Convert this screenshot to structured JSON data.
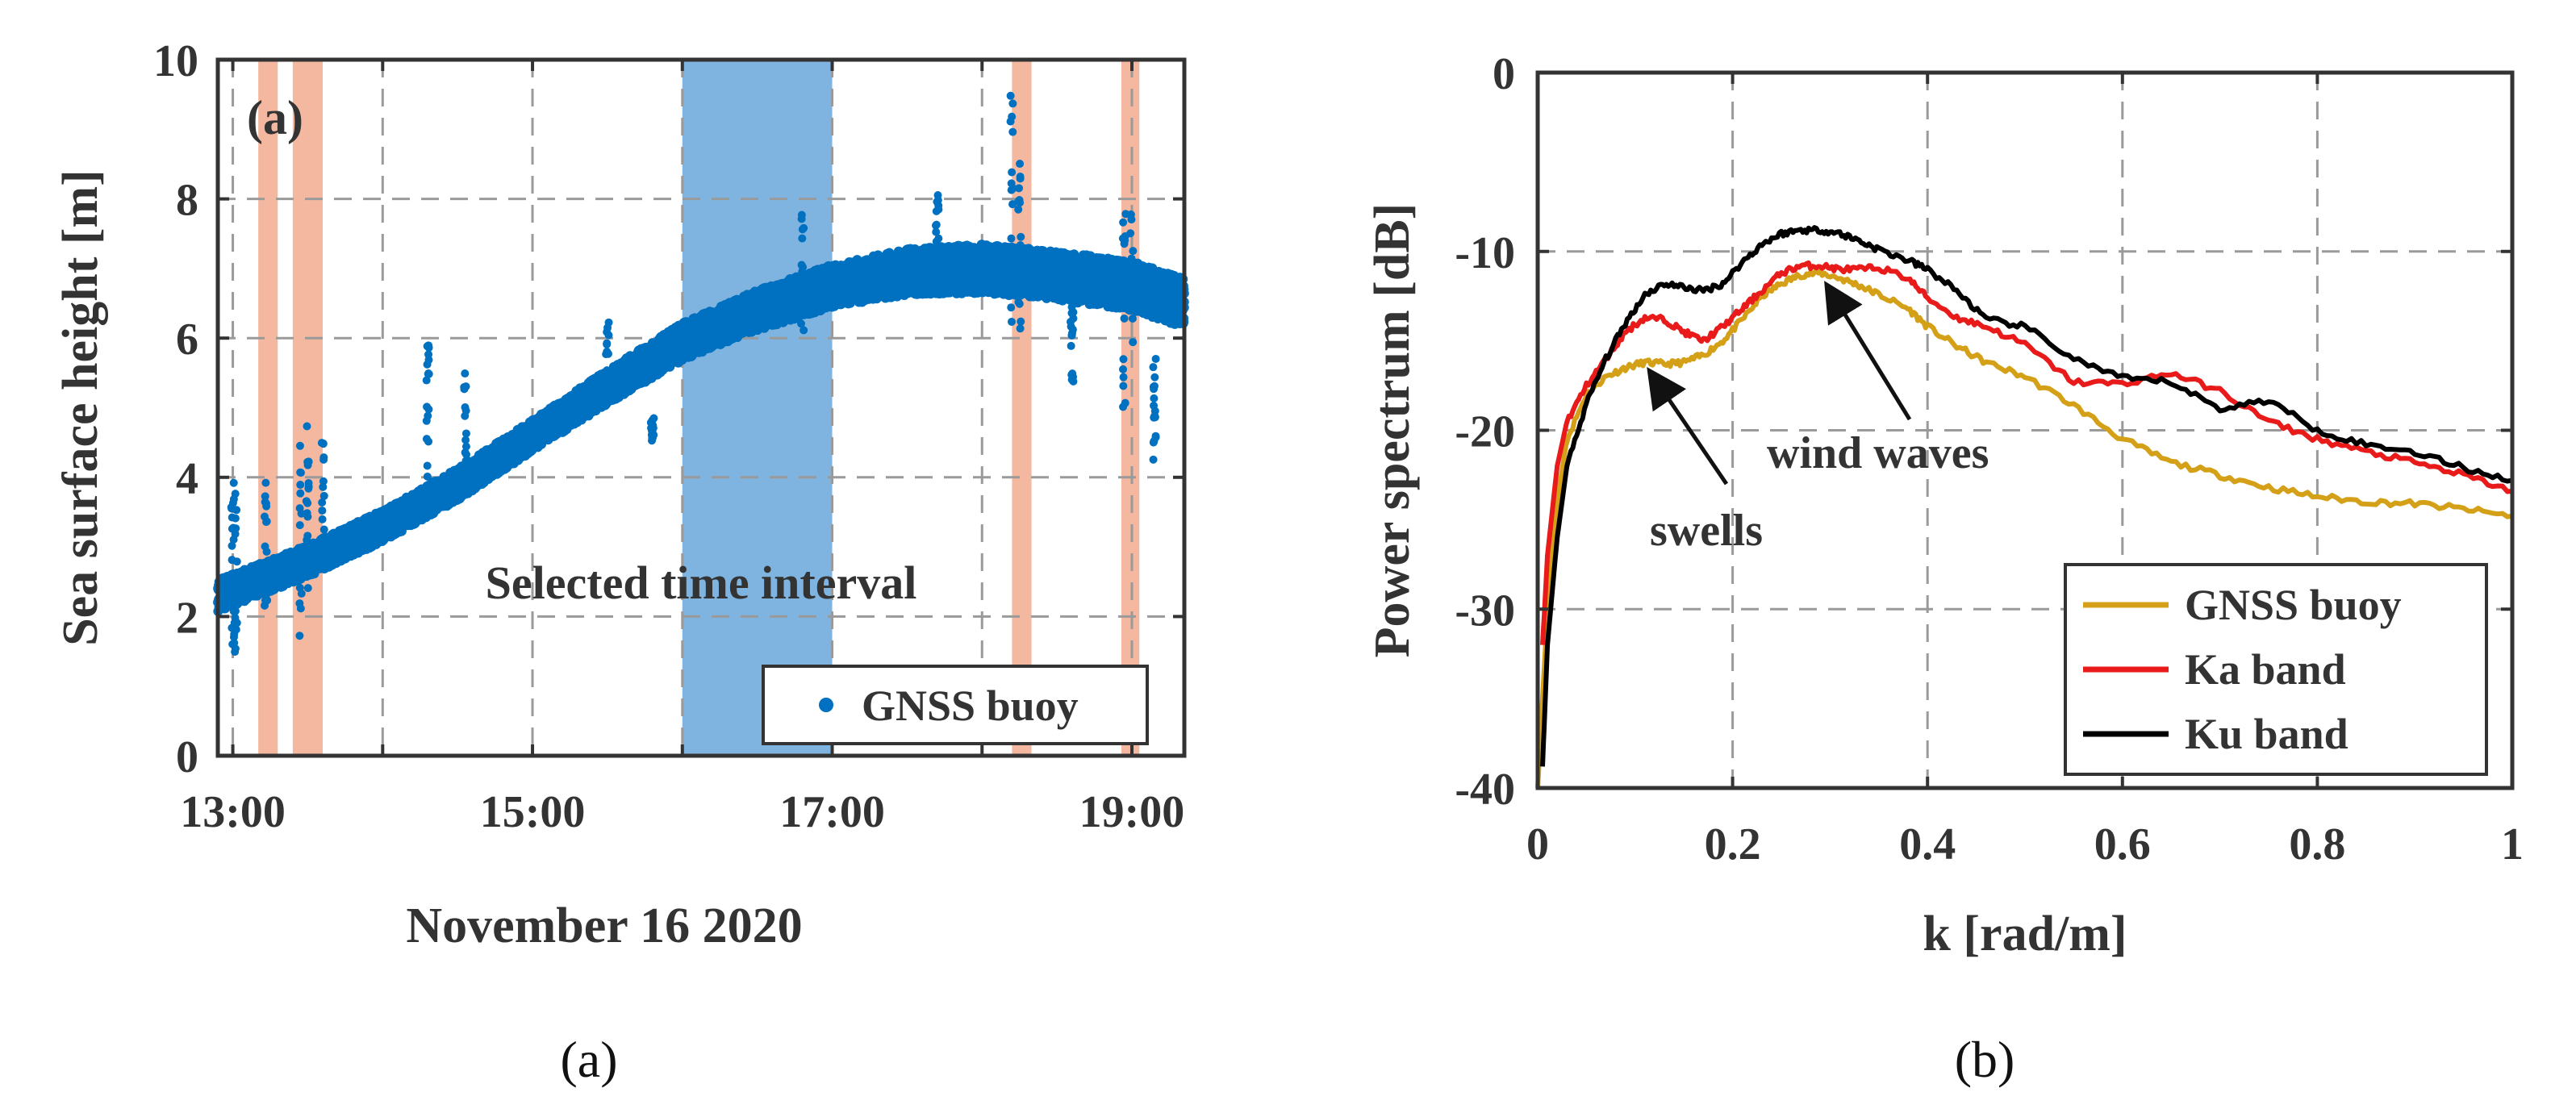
{
  "chart_data": [
    {
      "id": "a",
      "type": "scatter",
      "panel_label": "(a)",
      "caption": "(a)",
      "xlabel": "November 16 2020",
      "ylabel": "Sea surface height [m]",
      "xlim": [
        12.9,
        19.35
      ],
      "ylim": [
        0,
        10
      ],
      "x_tick_labels": [
        {
          "t": 13,
          "label": "13:00"
        },
        {
          "t": 15,
          "label": "15:00"
        },
        {
          "t": 17,
          "label": "17:00"
        },
        {
          "t": 19,
          "label": "19:00"
        }
      ],
      "y_ticks": [
        0,
        2,
        4,
        6,
        8,
        10
      ],
      "x_gridlines": [
        13,
        14,
        15,
        16,
        17,
        18,
        19
      ],
      "annotation": "Selected time interval",
      "selected_interval": [
        16.0,
        17.0
      ],
      "excluded_intervals": [
        [
          13.17,
          13.3
        ],
        [
          13.4,
          13.6
        ],
        [
          18.2,
          18.33
        ],
        [
          18.93,
          19.05
        ]
      ],
      "colors": {
        "series": "#0070c0",
        "selected": "#7fb4e0",
        "excluded": "#f4b8a0"
      },
      "series": [
        {
          "name": "GNSS buoy",
          "trend": [
            {
              "t": 12.9,
              "y": 2.3
            },
            {
              "t": 13.5,
              "y": 2.8
            },
            {
              "t": 14.0,
              "y": 3.3
            },
            {
              "t": 14.5,
              "y": 3.9
            },
            {
              "t": 15.0,
              "y": 4.6
            },
            {
              "t": 15.5,
              "y": 5.3
            },
            {
              "t": 16.0,
              "y": 5.95
            },
            {
              "t": 16.5,
              "y": 6.4
            },
            {
              "t": 17.0,
              "y": 6.75
            },
            {
              "t": 17.5,
              "y": 6.95
            },
            {
              "t": 18.0,
              "y": 7.0
            },
            {
              "t": 18.5,
              "y": 6.9
            },
            {
              "t": 19.0,
              "y": 6.75
            },
            {
              "t": 19.35,
              "y": 6.5
            }
          ]
        }
      ]
    },
    {
      "id": "b",
      "type": "line",
      "caption": "(b)",
      "xlabel": "k [rad/m]",
      "ylabel": "Power spectrum [dB]",
      "xlim": [
        0,
        1
      ],
      "ylim": [
        -40,
        0
      ],
      "x_ticks": [
        0,
        0.2,
        0.4,
        0.6,
        0.8,
        1
      ],
      "x_tick_labels": [
        "0",
        "0.2",
        "0.4",
        "0.6",
        "0.8",
        "1"
      ],
      "y_ticks": [
        0,
        -10,
        -20,
        -30,
        -40
      ],
      "y_tick_labels": [
        "0",
        "-10",
        "-20",
        "-30",
        "-40"
      ],
      "annotations": [
        {
          "text": "swells",
          "point_x": 0.11,
          "point_y": -16.2
        },
        {
          "text": "wind waves",
          "point_x": 0.29,
          "point_y": -11.3
        }
      ],
      "series": [
        {
          "name": "GNSS buoy",
          "color": "#d4a017",
          "x": [
            0.0,
            0.01,
            0.02,
            0.03,
            0.05,
            0.07,
            0.09,
            0.11,
            0.13,
            0.15,
            0.17,
            0.19,
            0.21,
            0.23,
            0.25,
            0.27,
            0.29,
            0.31,
            0.33,
            0.35,
            0.38,
            0.4,
            0.43,
            0.46,
            0.5,
            0.55,
            0.6,
            0.65,
            0.7,
            0.75,
            0.8,
            0.85,
            0.9,
            0.95,
            1.0
          ],
          "y": [
            -40,
            -30,
            -24,
            -20.5,
            -18,
            -17,
            -16.5,
            -16.2,
            -16.3,
            -16.2,
            -15.8,
            -15.0,
            -13.8,
            -12.5,
            -11.8,
            -11.3,
            -11.2,
            -11.5,
            -11.9,
            -12.4,
            -13.2,
            -14.2,
            -15.3,
            -16.2,
            -17.0,
            -18.6,
            -20.5,
            -21.8,
            -22.5,
            -23.2,
            -23.7,
            -24.0,
            -24.1,
            -24.4,
            -24.8
          ]
        },
        {
          "name": "Ka band",
          "color": "#e81a1a",
          "x": [
            0.005,
            0.01,
            0.02,
            0.03,
            0.05,
            0.07,
            0.09,
            0.11,
            0.13,
            0.15,
            0.17,
            0.19,
            0.21,
            0.23,
            0.25,
            0.27,
            0.29,
            0.31,
            0.33,
            0.35,
            0.38,
            0.4,
            0.43,
            0.46,
            0.5,
            0.55,
            0.6,
            0.65,
            0.7,
            0.75,
            0.8,
            0.85,
            0.9,
            0.95,
            1.0
          ],
          "y": [
            -32,
            -27,
            -22,
            -19.5,
            -17.5,
            -16,
            -14.5,
            -13.7,
            -13.8,
            -14.5,
            -15,
            -14.2,
            -13.2,
            -12.2,
            -11.2,
            -10.8,
            -10.8,
            -11.0,
            -11.0,
            -10.9,
            -11.5,
            -12.6,
            -13.7,
            -14.2,
            -15.2,
            -17.3,
            -17.4,
            -16.8,
            -17.8,
            -19.5,
            -20.5,
            -21.2,
            -21.8,
            -22.5,
            -23.4
          ]
        },
        {
          "name": "Ku band",
          "color": "#000000",
          "x": [
            0.005,
            0.01,
            0.02,
            0.03,
            0.05,
            0.07,
            0.09,
            0.11,
            0.13,
            0.15,
            0.17,
            0.19,
            0.21,
            0.23,
            0.25,
            0.27,
            0.29,
            0.31,
            0.33,
            0.35,
            0.38,
            0.4,
            0.43,
            0.46,
            0.5,
            0.55,
            0.6,
            0.65,
            0.7,
            0.75,
            0.8,
            0.85,
            0.9,
            0.95,
            1.0
          ],
          "y": [
            -38.8,
            -32,
            -26,
            -22,
            -18.5,
            -16,
            -14,
            -12.4,
            -11.8,
            -12.0,
            -12.2,
            -11.8,
            -10.6,
            -9.6,
            -9.0,
            -8.8,
            -8.8,
            -9.0,
            -9.4,
            -9.9,
            -10.5,
            -11.0,
            -12.2,
            -13.8,
            -14.2,
            -16.0,
            -17.1,
            -17.3,
            -18.8,
            -18.3,
            -20.0,
            -20.8,
            -21.2,
            -22.1,
            -22.8
          ]
        }
      ]
    }
  ]
}
